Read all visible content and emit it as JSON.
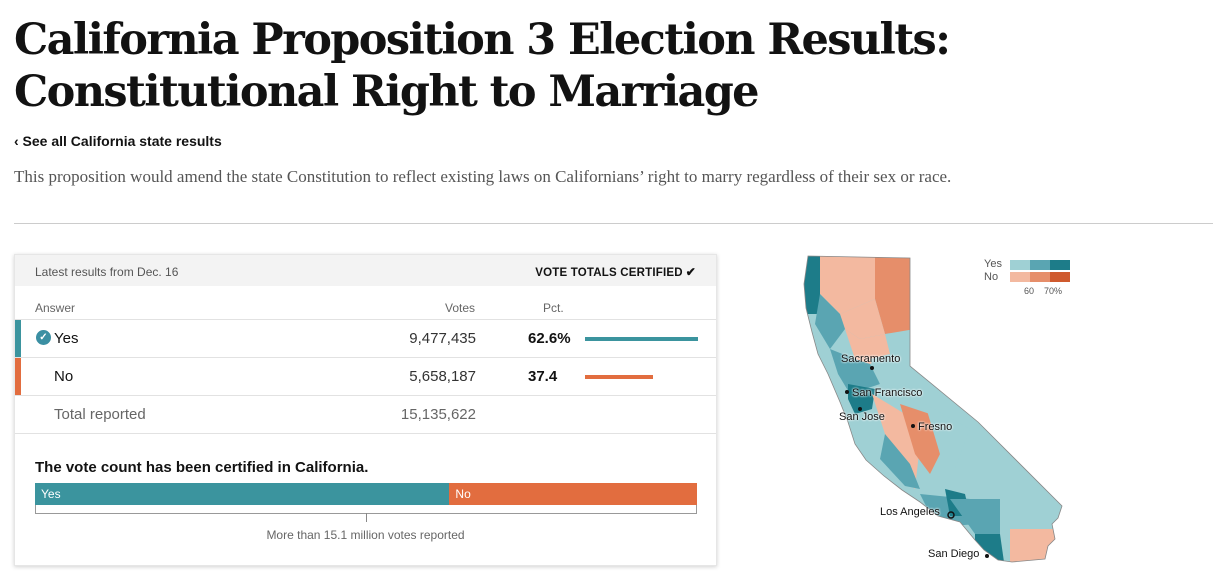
{
  "page": {
    "title": "California Proposition 3 Election Results: Constitutional Right to Marriage",
    "back_link": "‹ See all California state results",
    "description": "This proposition would amend the state Constitution to reflect existing laws on Californians’ right to marry regardless of their sex or race."
  },
  "results": {
    "latest": "Latest results from Dec. 16",
    "certified_label": "VOTE TOTALS CERTIFIED",
    "columns": {
      "answer": "Answer",
      "votes": "Votes",
      "pct": "Pct."
    },
    "yes": {
      "label": "Yes",
      "votes": "9,477,435",
      "pct": "62.6%",
      "pct_value": 62.6,
      "color": "#3b949e"
    },
    "no": {
      "label": "No",
      "votes": "5,658,187",
      "pct": "37.4",
      "pct_value": 37.4,
      "color": "#e26d3f"
    },
    "total": {
      "label": "Total reported",
      "votes": "15,135,622"
    },
    "certified_message": "The vote count has been certified in California.",
    "bar_yes_label": "Yes",
    "bar_no_label": "No",
    "reported_text": "More than 15.1 million votes reported"
  },
  "map": {
    "legend": {
      "yes": "Yes",
      "no": "No",
      "tick1": "60",
      "tick2": "70%"
    },
    "colors": {
      "yes": [
        "#9fd0d4",
        "#5aa5b2",
        "#1d7c89"
      ],
      "no": [
        "#f3b9a0",
        "#e68e6a",
        "#cf5a2e"
      ]
    },
    "cities": [
      "Sacramento",
      "San Francisco",
      "San Jose",
      "Fresno",
      "Los Angeles",
      "San Diego"
    ]
  }
}
